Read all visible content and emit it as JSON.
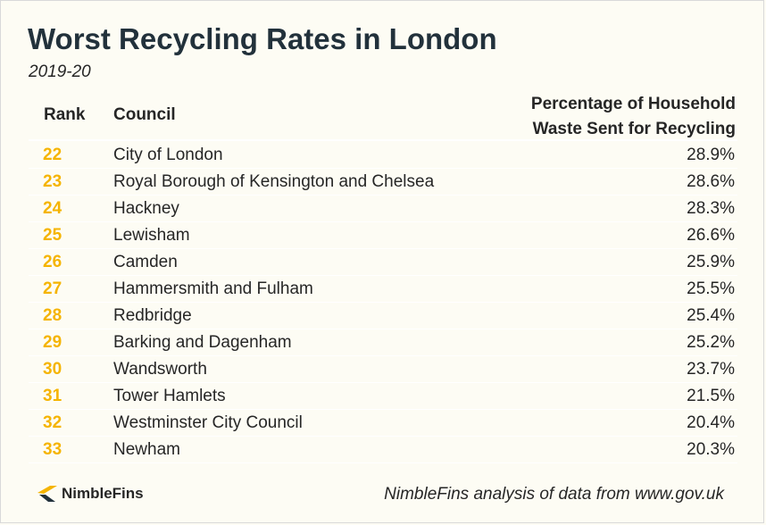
{
  "title": "Worst Recycling Rates in London",
  "subtitle": "2019-20",
  "columns": {
    "rank": "Rank",
    "council": "Council",
    "pct_line1": "Percentage of Household",
    "pct_line2": "Waste Sent for Recycling"
  },
  "chart_data": {
    "type": "table",
    "title": "Worst Recycling Rates in London",
    "subtitle": "2019-20",
    "headers": [
      "Rank",
      "Council",
      "Percentage of Household Waste Sent for Recycling"
    ],
    "rows": [
      {
        "rank": "22",
        "council": "City of London",
        "pct": "28.9%"
      },
      {
        "rank": "23",
        "council": "Royal Borough of Kensington and Chelsea",
        "pct": "28.6%"
      },
      {
        "rank": "24",
        "council": "Hackney",
        "pct": "28.3%"
      },
      {
        "rank": "25",
        "council": "Lewisham",
        "pct": "26.6%"
      },
      {
        "rank": "26",
        "council": "Camden",
        "pct": "25.9%"
      },
      {
        "rank": "27",
        "council": "Hammersmith and Fulham",
        "pct": "25.5%"
      },
      {
        "rank": "28",
        "council": "Redbridge",
        "pct": "25.4%"
      },
      {
        "rank": "29",
        "council": "Barking and Dagenham",
        "pct": "25.2%"
      },
      {
        "rank": "30",
        "council": "Wandsworth",
        "pct": "23.7%"
      },
      {
        "rank": "31",
        "council": "Tower Hamlets",
        "pct": "21.5%"
      },
      {
        "rank": "32",
        "council": "Westminster City Council",
        "pct": "20.4%"
      },
      {
        "rank": "33",
        "council": "Newham",
        "pct": "20.3%"
      }
    ]
  },
  "footer": {
    "brand": "NimbleFins",
    "source": "NimbleFins analysis of data from www.gov.uk"
  },
  "colors": {
    "background": "#fdfcf4",
    "title": "#22313b",
    "rank": "#f5b400",
    "row_divider": "#ffffff"
  }
}
